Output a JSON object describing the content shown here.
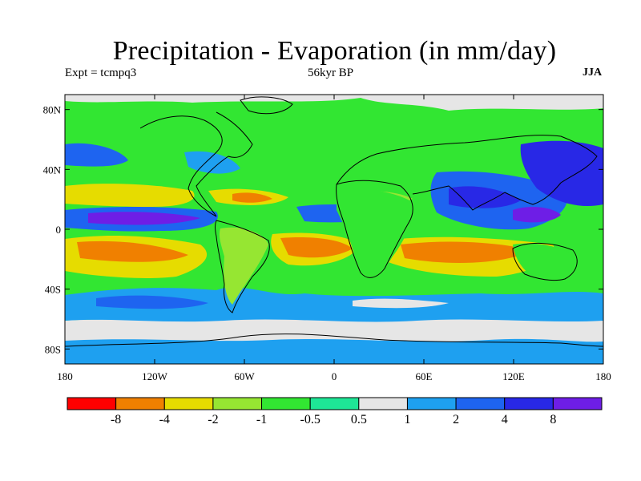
{
  "title": "Precipitation - Evaporation (in mm/day)",
  "subtitle_left": "Expt = tcmpq3",
  "subtitle_center": "56kyr BP",
  "subtitle_right": "JJA",
  "map": {
    "lat_ticks": [
      "80N",
      "40N",
      "0",
      "40S",
      "80S"
    ],
    "lat_values": [
      80,
      40,
      0,
      -40,
      -80
    ],
    "lon_ticks": [
      "180",
      "120W",
      "60W",
      "0",
      "60E",
      "120E",
      "180"
    ],
    "lon_values": [
      -180,
      -120,
      -60,
      0,
      60,
      120,
      180
    ],
    "lat_range": [
      -90,
      90
    ],
    "lon_range": [
      -180,
      180
    ]
  },
  "colorbar": {
    "colors": [
      "#ff0000",
      "#f08000",
      "#e6dc00",
      "#96e632",
      "#32e632",
      "#1ee696",
      "#e6e6e6",
      "#1ea0f0",
      "#1e64f0",
      "#2828e6",
      "#6e1ee6"
    ],
    "labels": [
      "-8",
      "-4",
      "-2",
      "-1",
      "-0.5",
      "0.5",
      "1",
      "2",
      "4",
      "8"
    ]
  },
  "palette": {
    "ocean_base": "#32e632",
    "coastline": "#000000"
  }
}
